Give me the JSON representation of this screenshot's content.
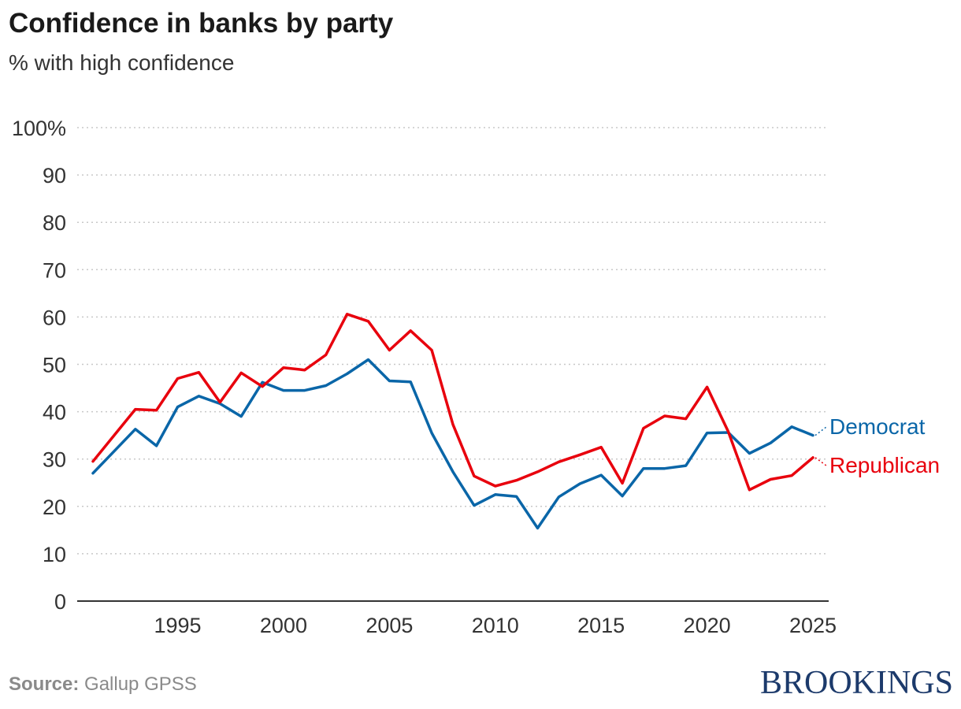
{
  "header": {
    "title": "Confidence in banks by party",
    "subtitle": "% with high confidence"
  },
  "footer": {
    "source_label": "Source:",
    "source_text": "Gallup GPSS",
    "logo": "BROOKINGS"
  },
  "colors": {
    "democrat": "#0a66a8",
    "republican": "#e8000d",
    "grid": "#c8c8c8",
    "axis": "#333333"
  },
  "chart_data": {
    "type": "line",
    "title": "Confidence in banks by party",
    "subtitle": "% with high confidence",
    "xlabel": "",
    "ylabel": "",
    "xlim": [
      1991,
      2025
    ],
    "ylim": [
      0,
      100
    ],
    "x_ticks": [
      1995,
      2000,
      2005,
      2010,
      2015,
      2020,
      2025
    ],
    "y_ticks": [
      0,
      10,
      20,
      30,
      40,
      50,
      60,
      70,
      80,
      90,
      100
    ],
    "y_tick_labels": [
      "0",
      "10",
      "20",
      "30",
      "40",
      "50",
      "60",
      "70",
      "80",
      "90",
      "100%"
    ],
    "grid": "horizontal dotted",
    "legend": "direct labels at line ends",
    "x": [
      1991,
      1993,
      1994,
      1995,
      1996,
      1997,
      1998,
      1999,
      2000,
      2001,
      2002,
      2003,
      2004,
      2005,
      2006,
      2007,
      2008,
      2009,
      2010,
      2011,
      2012,
      2013,
      2014,
      2015,
      2016,
      2017,
      2018,
      2019,
      2020,
      2021,
      2022,
      2023,
      2024,
      2025
    ],
    "series": [
      {
        "name": "Democrat",
        "color": "#0a66a8",
        "values": [
          27,
          36.3,
          32.8,
          41,
          43.3,
          41.7,
          39,
          46.2,
          44.5,
          44.5,
          45.5,
          48,
          51,
          46.5,
          46.3,
          35.5,
          27.3,
          20.2,
          22.5,
          22.1,
          15.4,
          22,
          24.8,
          26.6,
          22.2,
          28,
          28,
          28.6,
          35.5,
          35.6,
          31.2,
          33.4,
          36.8,
          35
        ]
      },
      {
        "name": "Republican",
        "color": "#e8000d",
        "values": [
          29.5,
          40.5,
          40.3,
          47,
          48.3,
          42,
          48.2,
          45.3,
          49.3,
          48.8,
          52,
          60.6,
          59.1,
          53,
          57.1,
          53,
          37.3,
          26.4,
          24.3,
          25.5,
          27.3,
          29.4,
          30.9,
          32.5,
          24.9,
          36.5,
          39.1,
          38.5,
          45.2,
          35.8,
          23.5,
          25.7,
          26.5,
          30.3
        ]
      }
    ]
  }
}
